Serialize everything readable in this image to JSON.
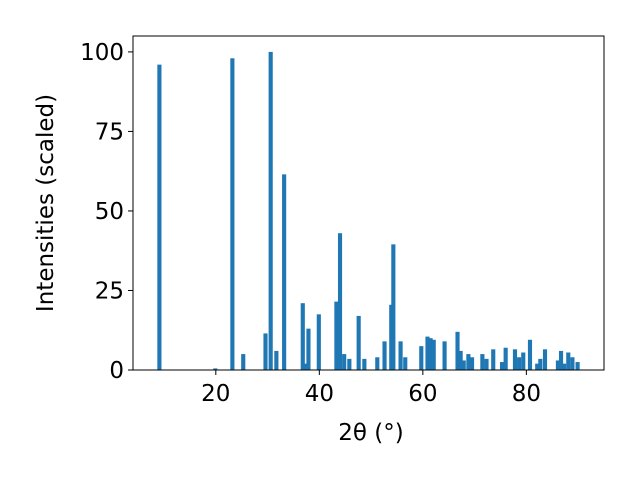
{
  "chart_data": {
    "type": "bar",
    "xlabel": "2θ (°)",
    "ylabel": "Intensities (scaled)",
    "xlim": [
      4,
      95
    ],
    "ylim": [
      0,
      105
    ],
    "bar_color": "#1f77b4",
    "grid": false,
    "x_ticks": [
      20,
      40,
      60,
      80
    ],
    "x_tick_labels": [
      "20",
      "40",
      "60",
      "80"
    ],
    "y_ticks": [
      0,
      25,
      50,
      75,
      100
    ],
    "y_tick_labels": [
      "0",
      "25",
      "50",
      "75",
      "100"
    ],
    "bar_width": 0.8,
    "x": [
      9.1,
      19.9,
      23.2,
      25.3,
      29.6,
      30.6,
      31.7,
      33.2,
      36.8,
      37.3,
      37.9,
      39.9,
      43.3,
      44.0,
      44.8,
      45.8,
      47.6,
      48.7,
      51.2,
      52.6,
      53.9,
      54.3,
      55.7,
      56.6,
      59.7,
      60.9,
      61.5,
      62.1,
      64.2,
      66.7,
      67.3,
      67.9,
      68.8,
      69.5,
      71.5,
      72.3,
      73.6,
      75.3,
      76.0,
      77.8,
      78.6,
      79.4,
      80.7,
      82.1,
      82.7,
      83.6,
      86.1,
      86.7,
      87.3,
      88.1,
      88.9,
      89.9
    ],
    "values": [
      96,
      0.5,
      98,
      5,
      11.5,
      100,
      6,
      61.5,
      21,
      2,
      13,
      17.5,
      21.5,
      43,
      5,
      3.5,
      17,
      3.5,
      4,
      9,
      20.5,
      39.5,
      9,
      4,
      7.5,
      10.5,
      10,
      9.5,
      9,
      12,
      6,
      3,
      5,
      4,
      5,
      3.5,
      6.5,
      2.5,
      7,
      6.5,
      4,
      5.5,
      9.5,
      2,
      3.5,
      6.5,
      3,
      6,
      2,
      5.5,
      4,
      2.5
    ]
  }
}
